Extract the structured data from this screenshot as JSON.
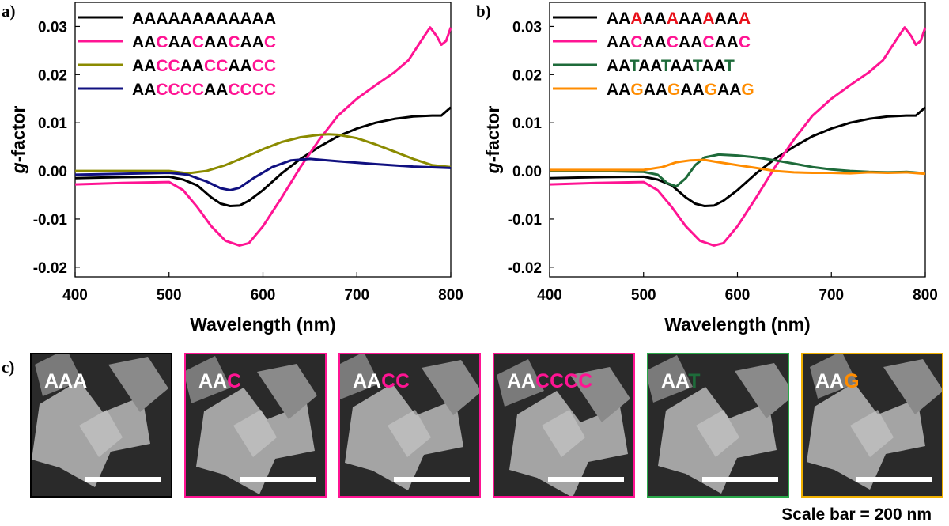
{
  "colors": {
    "black": "#000000",
    "pink": "#ff1493",
    "olive": "#8b8b00",
    "navy": "#101080",
    "green": "#1e6b3a",
    "orange": "#ff8c00",
    "red": "#e8101a"
  },
  "panel_labels": {
    "a": "a)",
    "b": "b)",
    "c": "c)"
  },
  "chart_data": [
    {
      "type": "line",
      "panel": "a",
      "xlabel": "Wavelength (nm)",
      "ylabel": "g-factor",
      "ylabel_italic": "g",
      "ylabel_rest": "-factor",
      "xlim": [
        400,
        800
      ],
      "ylim": [
        -0.022,
        0.035
      ],
      "xticks": [
        400,
        500,
        600,
        700,
        800
      ],
      "xtick_labels": [
        "400",
        "500",
        "600",
        "700",
        "800"
      ],
      "yticks": [
        -0.02,
        -0.01,
        0.0,
        0.01,
        0.02,
        0.03
      ],
      "ytick_labels": [
        "-0.02",
        "-0.01",
        "0.00",
        "0.01",
        "0.02",
        "0.03"
      ],
      "legend_position": "top-left",
      "series": [
        {
          "name": "AAAAAAAAAAAA",
          "color": "#000000",
          "legend": [
            [
              "AAAAAAAAAAAA",
              "#000000"
            ]
          ],
          "x": [
            400,
            450,
            500,
            515,
            530,
            545,
            555,
            565,
            575,
            585,
            600,
            620,
            640,
            660,
            680,
            700,
            720,
            740,
            760,
            780,
            790,
            800
          ],
          "y": [
            -0.0015,
            -0.0013,
            -0.0012,
            -0.0018,
            -0.003,
            -0.0055,
            -0.0068,
            -0.0073,
            -0.0072,
            -0.0062,
            -0.004,
            -0.0005,
            0.0025,
            0.005,
            0.0072,
            0.0088,
            0.01,
            0.0108,
            0.0113,
            0.0115,
            0.0115,
            0.0132
          ]
        },
        {
          "name": "AACAACAACAAC",
          "color": "#ff1493",
          "legend": [
            [
              "AA",
              "#000000"
            ],
            [
              "C",
              "#ff1493"
            ],
            [
              "AA",
              "#000000"
            ],
            [
              "C",
              "#ff1493"
            ],
            [
              "AA",
              "#000000"
            ],
            [
              "C",
              "#ff1493"
            ],
            [
              "AA",
              "#000000"
            ],
            [
              "C",
              "#ff1493"
            ]
          ],
          "x": [
            400,
            450,
            500,
            515,
            530,
            545,
            560,
            575,
            585,
            600,
            620,
            640,
            660,
            680,
            700,
            720,
            740,
            755,
            770,
            778,
            785,
            790,
            795,
            800
          ],
          "y": [
            -0.0028,
            -0.0025,
            -0.0023,
            -0.004,
            -0.0075,
            -0.0115,
            -0.0145,
            -0.0155,
            -0.015,
            -0.0115,
            -0.0055,
            0.0008,
            0.0065,
            0.0115,
            0.015,
            0.0178,
            0.0205,
            0.023,
            0.0275,
            0.0298,
            0.028,
            0.0262,
            0.027,
            0.0298
          ]
        },
        {
          "name": "AACCAACCAACC",
          "color": "#8b8b00",
          "legend": [
            [
              "AA",
              "#000000"
            ],
            [
              "CC",
              "#ff1493"
            ],
            [
              "AA",
              "#000000"
            ],
            [
              "CC",
              "#ff1493"
            ],
            [
              "AA",
              "#000000"
            ],
            [
              "CC",
              "#ff1493"
            ]
          ],
          "x": [
            400,
            450,
            500,
            520,
            540,
            560,
            580,
            600,
            620,
            640,
            660,
            670,
            680,
            700,
            720,
            740,
            760,
            780,
            800
          ],
          "y": [
            0.0,
            0.0,
            0.0,
            -0.0005,
            0.0,
            0.0012,
            0.0028,
            0.0045,
            0.006,
            0.007,
            0.0075,
            0.0076,
            0.0075,
            0.0068,
            0.0055,
            0.004,
            0.0025,
            0.0012,
            0.0008
          ]
        },
        {
          "name": "AACCCCAACCCC",
          "color": "#101080",
          "legend": [
            [
              "AA",
              "#000000"
            ],
            [
              "CCCC",
              "#ff1493"
            ],
            [
              "AA",
              "#000000"
            ],
            [
              "CCCC",
              "#ff1493"
            ]
          ],
          "x": [
            400,
            450,
            500,
            520,
            540,
            555,
            565,
            575,
            590,
            610,
            630,
            650,
            680,
            720,
            760,
            800
          ],
          "y": [
            -0.0008,
            -0.0006,
            -0.0004,
            -0.0008,
            -0.0022,
            -0.0036,
            -0.004,
            -0.0035,
            -0.0015,
            0.0008,
            0.0022,
            0.0025,
            0.002,
            0.0014,
            0.0009,
            0.0006
          ]
        }
      ]
    },
    {
      "type": "line",
      "panel": "b",
      "xlabel": "Wavelength (nm)",
      "ylabel": "g-factor",
      "ylabel_italic": "g",
      "ylabel_rest": "-factor",
      "xlim": [
        400,
        800
      ],
      "ylim": [
        -0.022,
        0.035
      ],
      "xticks": [
        400,
        500,
        600,
        700,
        800
      ],
      "xtick_labels": [
        "400",
        "500",
        "600",
        "700",
        "800"
      ],
      "yticks": [
        -0.02,
        -0.01,
        0.0,
        0.01,
        0.02,
        0.03
      ],
      "ytick_labels": [
        "-0.02",
        "-0.01",
        "0.00",
        "0.01",
        "0.02",
        "0.03"
      ],
      "legend_position": "top-left",
      "series": [
        {
          "name": "AAAAAAAAAAAA",
          "color": "#000000",
          "legend": [
            [
              "AA",
              "#000000"
            ],
            [
              "A",
              "#e8101a"
            ],
            [
              "AA",
              "#000000"
            ],
            [
              "A",
              "#e8101a"
            ],
            [
              "AA",
              "#000000"
            ],
            [
              "A",
              "#e8101a"
            ],
            [
              "AA",
              "#000000"
            ],
            [
              "A",
              "#e8101a"
            ]
          ],
          "x": [
            400,
            450,
            500,
            515,
            530,
            545,
            555,
            565,
            575,
            585,
            600,
            620,
            640,
            660,
            680,
            700,
            720,
            740,
            760,
            780,
            790,
            800
          ],
          "y": [
            -0.0015,
            -0.0013,
            -0.0012,
            -0.0018,
            -0.003,
            -0.0055,
            -0.0068,
            -0.0073,
            -0.0072,
            -0.0062,
            -0.004,
            -0.0005,
            0.0025,
            0.005,
            0.0072,
            0.0088,
            0.01,
            0.0108,
            0.0113,
            0.0115,
            0.0115,
            0.0132
          ]
        },
        {
          "name": "AACAACAACAAC",
          "color": "#ff1493",
          "legend": [
            [
              "AA",
              "#000000"
            ],
            [
              "C",
              "#ff1493"
            ],
            [
              "AA",
              "#000000"
            ],
            [
              "C",
              "#ff1493"
            ],
            [
              "AA",
              "#000000"
            ],
            [
              "C",
              "#ff1493"
            ],
            [
              "AA",
              "#000000"
            ],
            [
              "C",
              "#ff1493"
            ]
          ],
          "x": [
            400,
            450,
            500,
            515,
            530,
            545,
            560,
            575,
            585,
            600,
            620,
            640,
            660,
            680,
            700,
            720,
            740,
            755,
            770,
            778,
            785,
            790,
            795,
            800
          ],
          "y": [
            -0.0028,
            -0.0025,
            -0.0023,
            -0.004,
            -0.0075,
            -0.0115,
            -0.0145,
            -0.0155,
            -0.015,
            -0.0115,
            -0.0055,
            0.0008,
            0.0065,
            0.0115,
            0.015,
            0.0178,
            0.0205,
            0.023,
            0.0275,
            0.0298,
            0.028,
            0.0262,
            0.027,
            0.0298
          ]
        },
        {
          "name": "AATAATAATAAT",
          "color": "#1e6b3a",
          "legend": [
            [
              "AA",
              "#000000"
            ],
            [
              "T",
              "#1e6b3a"
            ],
            [
              "AA",
              "#000000"
            ],
            [
              "T",
              "#1e6b3a"
            ],
            [
              "AA",
              "#000000"
            ],
            [
              "T",
              "#1e6b3a"
            ],
            [
              "AA",
              "#000000"
            ],
            [
              "T",
              "#1e6b3a"
            ]
          ],
          "x": [
            400,
            450,
            500,
            515,
            525,
            535,
            545,
            555,
            565,
            580,
            600,
            620,
            640,
            660,
            680,
            700,
            720,
            740,
            760,
            780,
            800
          ],
          "y": [
            0.0,
            0.0,
            -0.0002,
            -0.0008,
            -0.0025,
            -0.0032,
            -0.0015,
            0.0012,
            0.0028,
            0.0034,
            0.0032,
            0.0028,
            0.0022,
            0.0015,
            0.0008,
            0.0003,
            0.0,
            -0.0002,
            -0.0003,
            -0.0002,
            -0.0005
          ]
        },
        {
          "name": "AAGAAGAAGAAG",
          "color": "#ff8c00",
          "legend": [
            [
              "AA",
              "#000000"
            ],
            [
              "G",
              "#ff8c00"
            ],
            [
              "AA",
              "#000000"
            ],
            [
              "G",
              "#ff8c00"
            ],
            [
              "AA",
              "#000000"
            ],
            [
              "G",
              "#ff8c00"
            ],
            [
              "AA",
              "#000000"
            ],
            [
              "G",
              "#ff8c00"
            ]
          ],
          "x": [
            400,
            450,
            500,
            520,
            535,
            550,
            565,
            580,
            600,
            620,
            640,
            660,
            680,
            700,
            720,
            740,
            760,
            780,
            800
          ],
          "y": [
            0.0002,
            0.0002,
            0.0002,
            0.0008,
            0.0018,
            0.0022,
            0.0023,
            0.0018,
            0.0012,
            0.0006,
            0.0,
            -0.0003,
            -0.0004,
            -0.0004,
            -0.0005,
            -0.0003,
            -0.0004,
            -0.0003,
            -0.0006
          ]
        }
      ]
    }
  ],
  "micrographs": [
    {
      "label": [
        [
          "AAA",
          "#ffffff"
        ]
      ],
      "border": "#000000"
    },
    {
      "label": [
        [
          "AA",
          "#ffffff"
        ],
        [
          "C",
          "#ff1493"
        ]
      ],
      "border": "#ff1493"
    },
    {
      "label": [
        [
          "AA",
          "#ffffff"
        ],
        [
          "CC",
          "#ff1493"
        ]
      ],
      "border": "#ff1493"
    },
    {
      "label": [
        [
          "AA",
          "#ffffff"
        ],
        [
          "CCCC",
          "#ff1493"
        ]
      ],
      "border": "#ff1493"
    },
    {
      "label": [
        [
          "AA",
          "#ffffff"
        ],
        [
          "T",
          "#1e6b3a"
        ]
      ],
      "border": "#2aa84a"
    },
    {
      "label": [
        [
          "AA",
          "#ffffff"
        ],
        [
          "G",
          "#ff8c00"
        ]
      ],
      "border": "#f0b000"
    }
  ],
  "scale_note": "Scale bar = 200 nm"
}
